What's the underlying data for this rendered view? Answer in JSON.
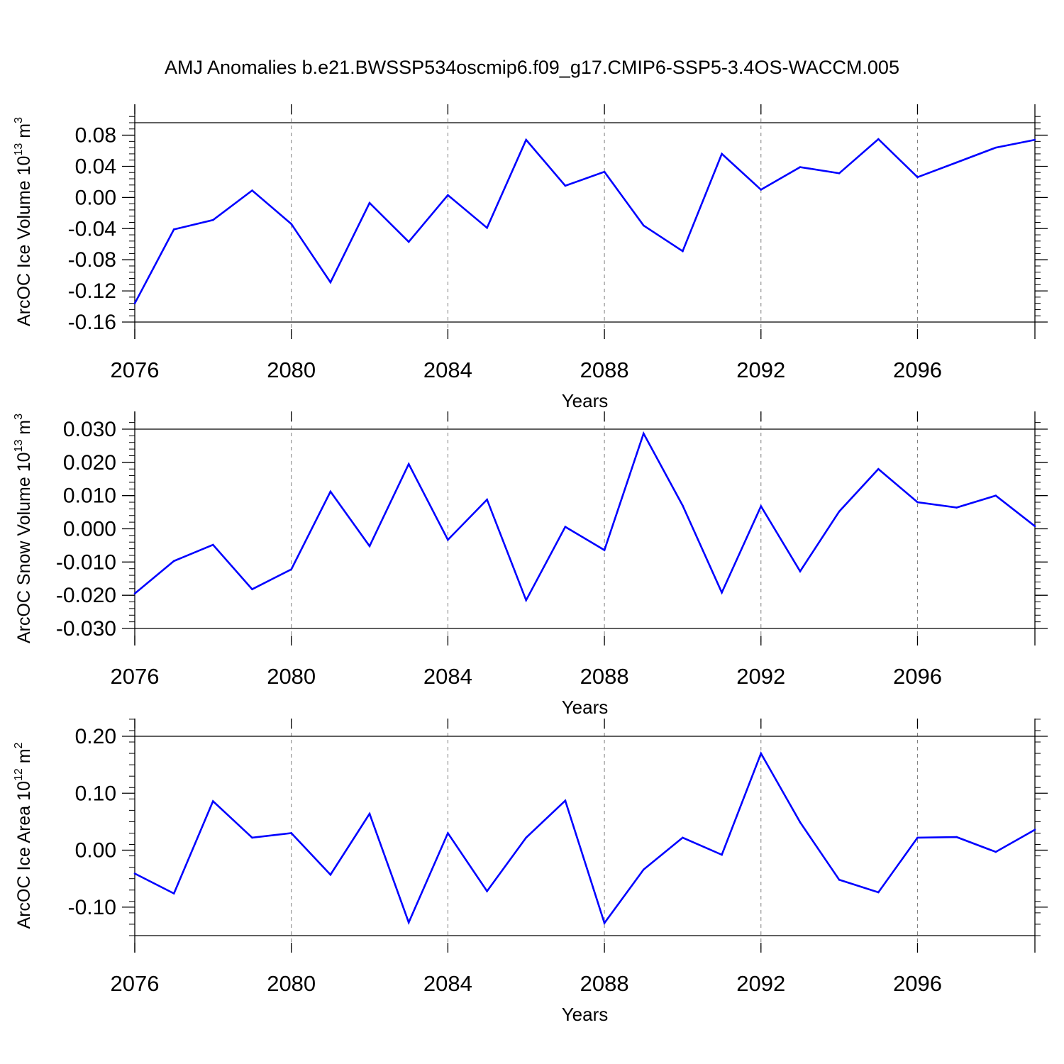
{
  "title": "AMJ Anomalies b.e21.BWSSP534oscmip6.f09_g17.CMIP6-SSP5-3.4OS-WACCM.005",
  "chart_data": [
    {
      "type": "line",
      "ylabel": "ArcOC Ice Volume 10",
      "ylabel_exp": "13",
      "ylabel_unit": " m",
      "ylabel_unit_exp": "3",
      "xlabel": "Years",
      "xlim": [
        2076,
        2099
      ],
      "ylim": [
        -0.16,
        0.096
      ],
      "xticks": [
        2076,
        2080,
        2084,
        2088,
        2092,
        2096
      ],
      "xtick_labels": [
        "2076",
        "2080",
        "2084",
        "2088",
        "2092",
        "2096"
      ],
      "yticks": [
        -0.16,
        -0.12,
        -0.08,
        -0.04,
        0.0,
        0.04,
        0.08
      ],
      "ytick_labels": [
        "-0.16",
        "-0.12",
        "-0.08",
        "-0.04",
        "0.00",
        "0.04",
        "0.08"
      ],
      "yminor_step": 0.008,
      "line_color": "#0000ff",
      "grid": "dashed vertical at major x ticks",
      "series": [
        {
          "x": [
            2076,
            2077,
            2078,
            2079,
            2080,
            2081,
            2082,
            2083,
            2084,
            2085,
            2086,
            2087,
            2088,
            2089,
            2090,
            2091,
            2092,
            2093,
            2094,
            2095,
            2096,
            2097,
            2098,
            2099
          ],
          "values": [
            -0.136,
            -0.041,
            -0.029,
            0.009,
            -0.034,
            -0.109,
            -0.007,
            -0.057,
            0.003,
            -0.039,
            0.074,
            0.015,
            0.033,
            -0.036,
            -0.069,
            0.056,
            0.01,
            0.039,
            0.031,
            0.075,
            0.026,
            0.045,
            0.064,
            0.074
          ]
        }
      ]
    },
    {
      "type": "line",
      "ylabel": "ArcOC Snow Volume 10",
      "ylabel_exp": "13",
      "ylabel_unit": " m",
      "ylabel_unit_exp": "3",
      "xlabel": "Years",
      "xlim": [
        2076,
        2099
      ],
      "ylim": [
        -0.03,
        0.03
      ],
      "xticks": [
        2076,
        2080,
        2084,
        2088,
        2092,
        2096
      ],
      "xtick_labels": [
        "2076",
        "2080",
        "2084",
        "2088",
        "2092",
        "2096"
      ],
      "yticks": [
        -0.03,
        -0.02,
        -0.01,
        0.0,
        0.01,
        0.02,
        0.03
      ],
      "ytick_labels": [
        "-0.030",
        "-0.020",
        "-0.010",
        "0.000",
        "0.010",
        "0.020",
        "0.030"
      ],
      "yminor_step": 0.002,
      "line_color": "#0000ff",
      "grid": "dashed vertical at major x ticks",
      "series": [
        {
          "x": [
            2076,
            2077,
            2078,
            2079,
            2080,
            2081,
            2082,
            2083,
            2084,
            2085,
            2086,
            2087,
            2088,
            2089,
            2090,
            2091,
            2092,
            2093,
            2094,
            2095,
            2096,
            2097,
            2098,
            2099
          ],
          "values": [
            -0.0195,
            -0.0097,
            -0.0048,
            -0.0182,
            -0.0122,
            0.0112,
            -0.0052,
            0.0195,
            -0.0033,
            0.0088,
            -0.0215,
            0.0006,
            -0.0064,
            0.0287,
            0.007,
            -0.0192,
            0.0068,
            -0.0128,
            0.0052,
            0.018,
            0.008,
            0.0064,
            0.01,
            0.0008
          ]
        }
      ]
    },
    {
      "type": "line",
      "ylabel": "ArcOC Ice Area 10",
      "ylabel_exp": "12",
      "ylabel_unit": " m",
      "ylabel_unit_exp": "2",
      "xlabel": "Years",
      "xlim": [
        2076,
        2099
      ],
      "ylim": [
        -0.15,
        0.2
      ],
      "xticks": [
        2076,
        2080,
        2084,
        2088,
        2092,
        2096
      ],
      "xtick_labels": [
        "2076",
        "2080",
        "2084",
        "2088",
        "2092",
        "2096"
      ],
      "yticks": [
        -0.1,
        0.0,
        0.1,
        0.2
      ],
      "ytick_labels": [
        "-0.10",
        "0.00",
        "0.10",
        "0.20"
      ],
      "yminor_step": 0.02,
      "line_color": "#0000ff",
      "grid": "dashed vertical at major x ticks",
      "series": [
        {
          "x": [
            2076,
            2077,
            2078,
            2079,
            2080,
            2081,
            2082,
            2083,
            2084,
            2085,
            2086,
            2087,
            2088,
            2089,
            2090,
            2091,
            2092,
            2093,
            2094,
            2095,
            2096,
            2097,
            2098,
            2099
          ],
          "values": [
            -0.041,
            -0.076,
            0.086,
            0.022,
            0.03,
            -0.043,
            0.064,
            -0.127,
            0.03,
            -0.072,
            0.022,
            0.087,
            -0.128,
            -0.034,
            0.022,
            -0.008,
            0.17,
            0.049,
            -0.052,
            -0.074,
            0.022,
            0.023,
            -0.003,
            0.036
          ]
        }
      ]
    }
  ]
}
